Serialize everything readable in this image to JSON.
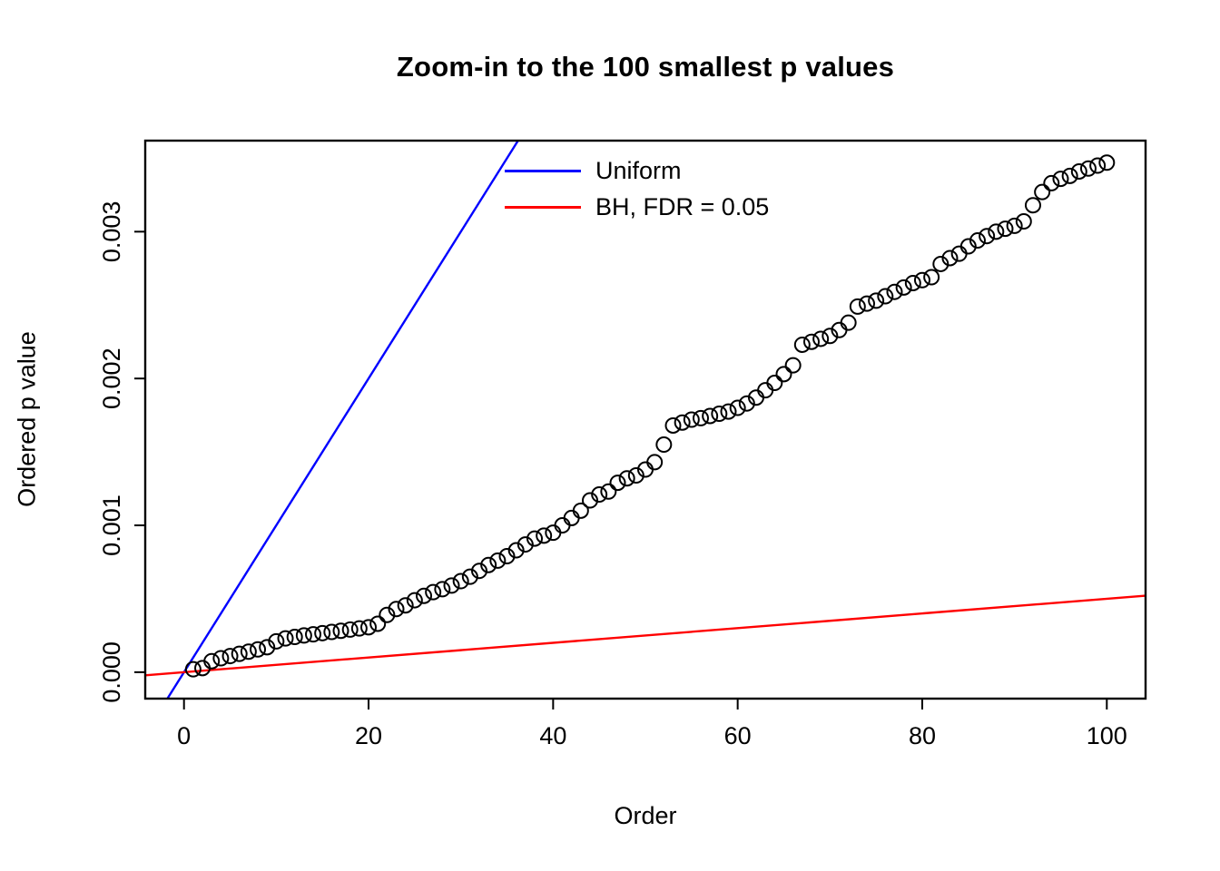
{
  "chart_data": {
    "type": "scatter",
    "title": "Zoom-in to the 100 smallest p values",
    "xlabel": "Order",
    "ylabel": "Ordered p value",
    "xlim": [
      -4.2,
      104.2
    ],
    "ylim": [
      -0.00018,
      0.00362
    ],
    "x_ticks": [
      0,
      20,
      40,
      60,
      80,
      100
    ],
    "y_ticks": [
      {
        "value": 0,
        "label": "0.000"
      },
      {
        "value": 0.001,
        "label": "0.001"
      },
      {
        "value": 0.002,
        "label": "0.002"
      },
      {
        "value": 0.003,
        "label": "0.003"
      }
    ],
    "grid": false,
    "legend_position": "top-center-inside",
    "point_style": {
      "shape": "open-circle",
      "color": "#000000"
    },
    "points": {
      "x": [
        1,
        2,
        3,
        4,
        5,
        6,
        7,
        8,
        9,
        10,
        11,
        12,
        13,
        14,
        15,
        16,
        17,
        18,
        19,
        20,
        21,
        22,
        23,
        24,
        25,
        26,
        27,
        28,
        29,
        30,
        31,
        32,
        33,
        34,
        35,
        36,
        37,
        38,
        39,
        40,
        41,
        42,
        43,
        44,
        45,
        46,
        47,
        48,
        49,
        50,
        51,
        52,
        53,
        54,
        55,
        56,
        57,
        58,
        59,
        60,
        61,
        62,
        63,
        64,
        65,
        66,
        67,
        68,
        69,
        70,
        71,
        72,
        73,
        74,
        75,
        76,
        77,
        78,
        79,
        80,
        81,
        82,
        83,
        84,
        85,
        86,
        87,
        88,
        89,
        90,
        91,
        92,
        93,
        94,
        95,
        96,
        97,
        98,
        99,
        100
      ],
      "y": [
        2e-05,
        2.8e-05,
        7.5e-05,
        9.5e-05,
        0.00011,
        0.000125,
        0.00014,
        0.000155,
        0.00017,
        0.00021,
        0.00023,
        0.00024,
        0.00025,
        0.000258,
        0.000266,
        0.000274,
        0.000282,
        0.00029,
        0.000298,
        0.000306,
        0.00033,
        0.00039,
        0.00043,
        0.000455,
        0.00049,
        0.00052,
        0.000545,
        0.000565,
        0.00059,
        0.00062,
        0.00065,
        0.00069,
        0.00073,
        0.00076,
        0.00079,
        0.00083,
        0.00087,
        0.00091,
        0.00093,
        0.00095,
        0.001,
        0.00105,
        0.0011,
        0.00117,
        0.00121,
        0.00123,
        0.00129,
        0.00132,
        0.00134,
        0.00138,
        0.00143,
        0.00155,
        0.00168,
        0.0017,
        0.00172,
        0.00173,
        0.001745,
        0.00176,
        0.001775,
        0.0018,
        0.00183,
        0.00187,
        0.00192,
        0.00197,
        0.00203,
        0.00209,
        0.00223,
        0.00225,
        0.00227,
        0.00229,
        0.00233,
        0.00238,
        0.00249,
        0.00251,
        0.00253,
        0.00256,
        0.00259,
        0.00262,
        0.00265,
        0.00267,
        0.00269,
        0.00278,
        0.00282,
        0.00285,
        0.0029,
        0.00294,
        0.00297,
        0.003,
        0.00302,
        0.00304,
        0.00307,
        0.00318,
        0.00327,
        0.00333,
        0.00336,
        0.00338,
        0.00341,
        0.00343,
        0.00345,
        0.00347
      ]
    },
    "lines": [
      {
        "name": "Uniform",
        "color": "#0000ff",
        "slope": 0.0001,
        "intercept": 0,
        "width": 2.4
      },
      {
        "name": "BH, FDR = 0.05",
        "color": "#ff0000",
        "slope": 5e-06,
        "intercept": 0,
        "width": 2.4
      }
    ],
    "legend": [
      {
        "label": "Uniform",
        "color": "#0000ff"
      },
      {
        "label": "BH, FDR = 0.05",
        "color": "#ff0000"
      }
    ]
  }
}
